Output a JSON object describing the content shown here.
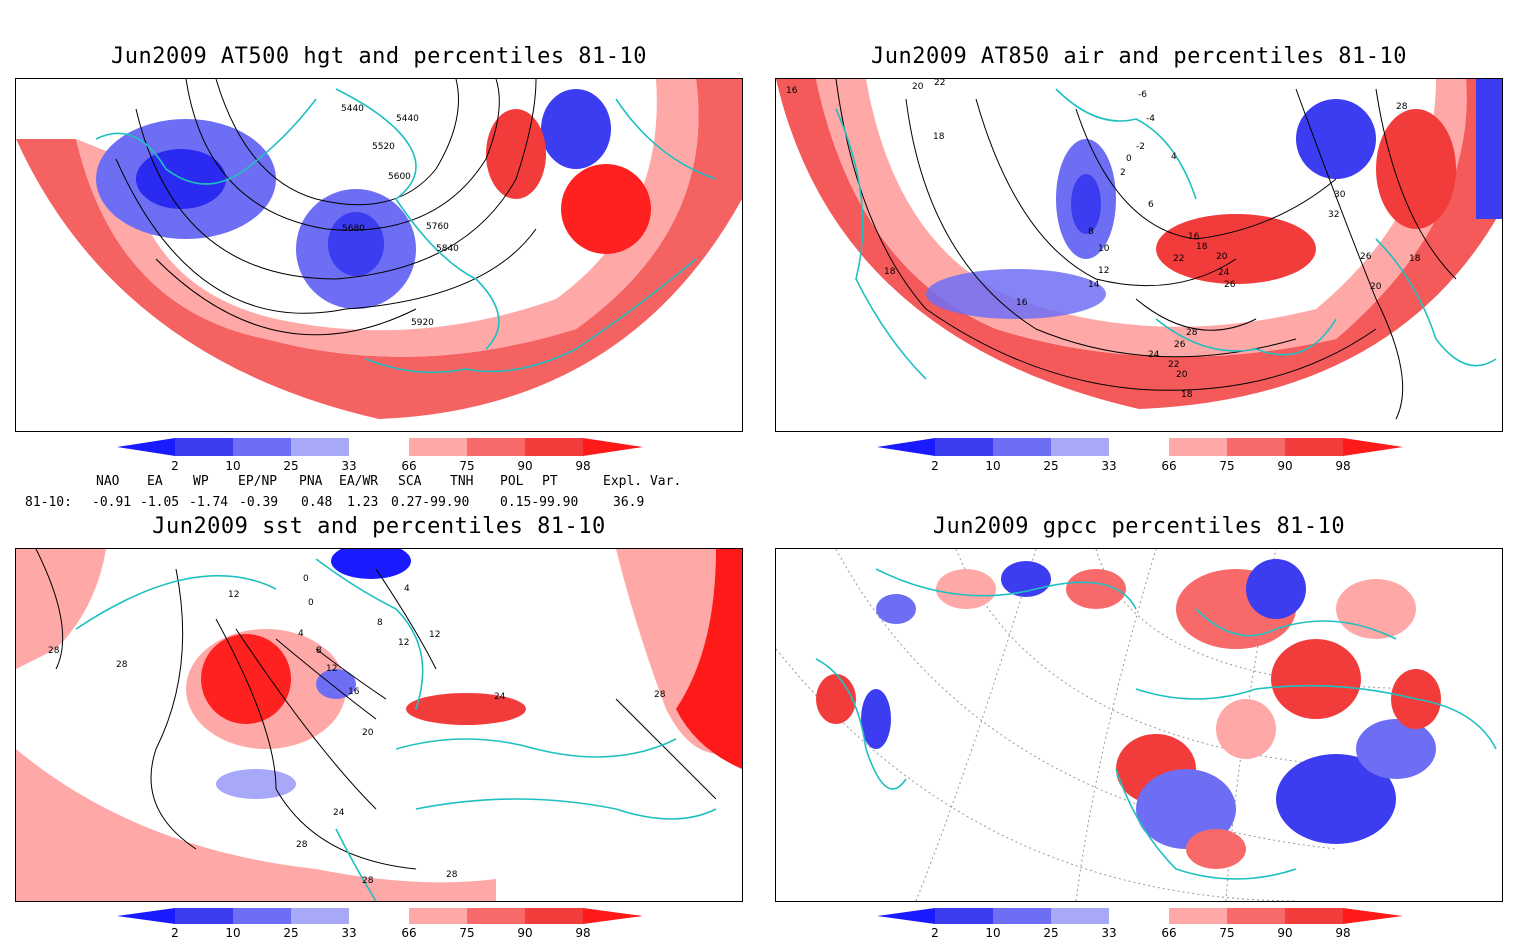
{
  "panels": [
    {
      "id": "hgt500",
      "title": "Jun2009 AT500 hgt and percentiles 81-10",
      "contour_labels": [
        "5440",
        "5440",
        "5520",
        "5600",
        "5680",
        "5760",
        "5840",
        "5920"
      ]
    },
    {
      "id": "air850",
      "title": "Jun2009 AT850 air and percentiles 81-10",
      "contour_labels": [
        "16",
        "22",
        "20",
        "18",
        "-6",
        "-4",
        "-2",
        "0",
        "2",
        "4",
        "6",
        "8",
        "10",
        "12",
        "14",
        "16",
        "18",
        "20",
        "22",
        "24",
        "26",
        "28",
        "26",
        "24",
        "22",
        "20",
        "18",
        "16",
        "18",
        "28",
        "30",
        "32",
        "26",
        "20",
        "18"
      ]
    },
    {
      "id": "sst",
      "title": "Jun2009 sst and percentiles 81-10",
      "contour_labels": [
        "28",
        "12",
        "28",
        "0",
        "0",
        "4",
        "8",
        "4",
        "8",
        "12",
        "12",
        "12",
        "16",
        "20",
        "24",
        "24",
        "28",
        "28",
        "28",
        "28"
      ]
    },
    {
      "id": "gpcc",
      "title": "Jun2009 gpcc percentiles 81-10",
      "contour_labels": []
    }
  ],
  "colorbar": {
    "labels": [
      "2",
      "10",
      "25",
      "33",
      "66",
      "75",
      "90",
      "98"
    ],
    "colors": [
      "#1a1aff",
      "#3c3cf0",
      "#6e6ef5",
      "#a8a8f8",
      "#ffffff",
      "#ffa8a8",
      "#f86a6a",
      "#f23c3c",
      "#ff1a1a"
    ]
  },
  "teleconnection": {
    "headers": [
      "NAO",
      "EA",
      "WP",
      "EP/NP",
      "PNA",
      "EA/WR",
      "SCA",
      "TNH",
      "POL",
      "PT",
      "Expl. Var."
    ],
    "row_label": "81-10:",
    "values": [
      "-0.91",
      "-1.05",
      "-1.74",
      "-0.39",
      "0.48",
      "1.23",
      "0.27-99.90",
      "0.15-99.90",
      "36.9"
    ]
  },
  "colors": {
    "coast": "#20c0c0",
    "contour": "#000000",
    "grid": "#999999"
  }
}
